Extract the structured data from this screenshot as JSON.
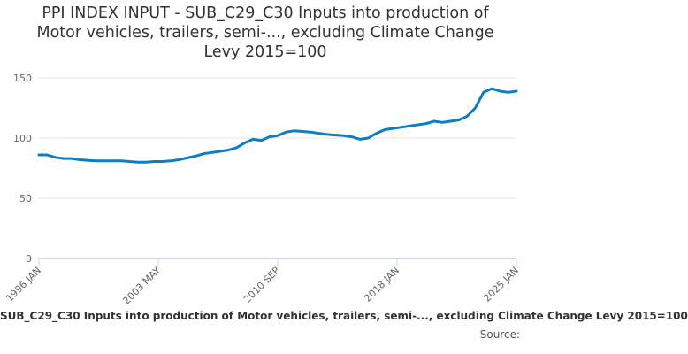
{
  "chart_data": {
    "type": "line",
    "title": "PPI INDEX INPUT - SUB_C29_C30 Inputs into production of Motor vehicles, trailers, semi-..., excluding Climate Change Levy 2015=100",
    "xlabel": "",
    "ylabel": "",
    "ylim": [
      0,
      150
    ],
    "yticks": [
      0,
      50,
      100,
      150
    ],
    "x_range": [
      "1996-01",
      "2025-01"
    ],
    "x_tick_labels": [
      "1996 JAN",
      "2003 MAY",
      "2010 SEP",
      "2018 JAN",
      "2025 JAN"
    ],
    "grid": true,
    "legend_position": "bottom",
    "color": "#0e7dc2",
    "series": [
      {
        "name": "SUB_C29_C30 Inputs into production of Motor vehicles, trailers, semi-..., excluding Climate Change Levy 2015=100",
        "x": [
          "1996-01",
          "1996-07",
          "1997-01",
          "1997-07",
          "1998-01",
          "1998-07",
          "1999-01",
          "1999-07",
          "2000-01",
          "2000-07",
          "2001-01",
          "2001-07",
          "2002-01",
          "2002-07",
          "2003-01",
          "2003-07",
          "2004-01",
          "2004-07",
          "2005-01",
          "2005-07",
          "2006-01",
          "2006-07",
          "2007-01",
          "2007-07",
          "2008-01",
          "2008-07",
          "2009-01",
          "2009-07",
          "2010-01",
          "2010-07",
          "2011-01",
          "2011-07",
          "2012-01",
          "2012-07",
          "2013-01",
          "2013-07",
          "2014-01",
          "2014-07",
          "2015-01",
          "2015-07",
          "2016-01",
          "2016-07",
          "2017-01",
          "2017-07",
          "2018-01",
          "2018-07",
          "2019-01",
          "2019-07",
          "2020-01",
          "2020-07",
          "2021-01",
          "2021-07",
          "2022-01",
          "2022-07",
          "2023-01",
          "2023-07",
          "2024-01",
          "2024-07",
          "2025-01"
        ],
        "values": [
          86,
          86,
          84,
          83,
          83,
          82,
          81.5,
          81,
          81,
          81,
          81,
          80.5,
          80,
          80,
          80.5,
          80.5,
          81,
          82,
          83.5,
          85,
          87,
          88,
          89,
          90,
          92,
          96,
          99,
          98,
          101,
          102,
          105,
          106,
          105.5,
          105,
          104,
          103,
          102.5,
          102,
          101,
          99,
          100,
          104,
          107,
          108,
          109,
          110,
          111,
          112,
          114,
          113,
          114,
          115,
          118,
          125,
          138,
          141,
          139,
          138,
          139
        ]
      }
    ]
  },
  "source_label": "Source:"
}
